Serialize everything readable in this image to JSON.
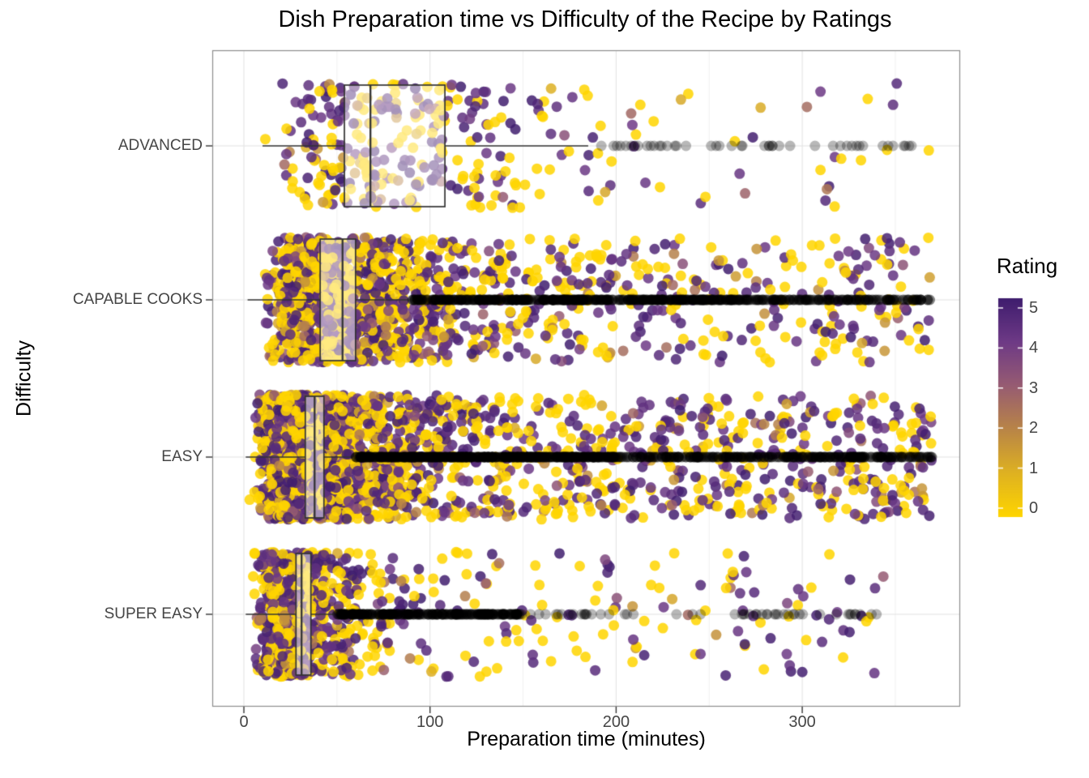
{
  "chart_data": {
    "type": "scatter",
    "subtype": "jittered-points-with-horizontal-boxplots",
    "title": "Dish Preparation time vs Difficulty of the Recipe by Ratings",
    "xlabel": "Preparation time (minutes)",
    "ylabel": "Difficulty",
    "x_axis": {
      "ticks": [
        0,
        100,
        200,
        300
      ],
      "minor_ticks": [
        50,
        150,
        250,
        350
      ],
      "range": [
        -17,
        385
      ],
      "grid": true
    },
    "categories": [
      {
        "label": "ADVANCED",
        "box": {
          "whisker_lo": 10,
          "q1": 54,
          "median": 68,
          "q3": 108,
          "whisker_hi": 185
        },
        "jitter": {
          "n": 330,
          "log_median": 75,
          "log_sigma": 0.55,
          "tail_frac": 0.12,
          "tail_range": [
            120,
            360
          ]
        },
        "outliers": {
          "n": 45,
          "segments": [
            {
              "frac": 1.0,
              "range": [
                190,
                360
              ]
            }
          ]
        }
      },
      {
        "label": "CAPABLE COOKS",
        "box": {
          "whisker_lo": 2,
          "q1": 41,
          "median": 53,
          "q3": 60,
          "whisker_hi": 88
        },
        "jitter": {
          "n": 1500,
          "log_median": 52,
          "log_sigma": 0.55,
          "tail_frac": 0.25,
          "tail_range": [
            60,
            369
          ]
        },
        "outliers": {
          "n": 720,
          "segments": [
            {
              "frac": 0.72,
              "range": [
                90,
                263
              ]
            },
            {
              "frac": 0.28,
              "range": [
                263,
                369
              ]
            }
          ]
        }
      },
      {
        "label": "EASY",
        "box": {
          "whisker_lo": 1,
          "q1": 33,
          "median": 38,
          "q3": 43,
          "whisker_hi": 58
        },
        "jitter": {
          "n": 2300,
          "log_median": 38,
          "log_sigma": 0.6,
          "tail_frac": 0.3,
          "tail_range": [
            45,
            370
          ]
        },
        "outliers": {
          "n": 900,
          "segments": [
            {
              "frac": 0.6,
              "range": [
                60,
                200
              ]
            },
            {
              "frac": 0.4,
              "range": [
                200,
                370
              ]
            }
          ]
        }
      },
      {
        "label": "SUPER EASY",
        "box": {
          "whisker_lo": 1,
          "q1": 28,
          "median": 31,
          "q3": 36,
          "whisker_hi": 48
        },
        "jitter": {
          "n": 850,
          "log_median": 30,
          "log_sigma": 0.6,
          "tail_frac": 0.15,
          "tail_range": [
            40,
            345
          ]
        },
        "outliers": {
          "n": 340,
          "segments": [
            {
              "frac": 0.85,
              "range": [
                50,
                150
              ]
            },
            {
              "frac": 0.15,
              "range": [
                150,
                345
              ]
            }
          ]
        }
      }
    ],
    "legend": {
      "title": "Rating",
      "min": 0,
      "max": 5,
      "ticks": [
        5,
        4,
        3,
        2,
        1,
        0
      ],
      "position": "right"
    },
    "ratings_mix": {
      "zero_frac": 0.45,
      "mid_frac": 0.12,
      "mid_range": [
        1,
        4
      ],
      "high_range": [
        4,
        5
      ]
    },
    "colors": {
      "scale_stops": [
        "#FFD500",
        "#DFB221",
        "#B98547",
        "#975C72",
        "#6E3A86",
        "#3F1D6E"
      ],
      "outlier": "rgba(0,0,0,0.28)",
      "box_stroke": "#333333",
      "box_fill": "rgba(255,255,255,0.5)",
      "grid_major": "#E2E2E2",
      "grid_minor": "#F1F1F1",
      "panel_border": "#8C8C8C",
      "axis_text": "#454545",
      "title_text": "#000000"
    },
    "point_style": {
      "radius": 6.5,
      "alpha": 0.85
    },
    "seed": 42
  }
}
